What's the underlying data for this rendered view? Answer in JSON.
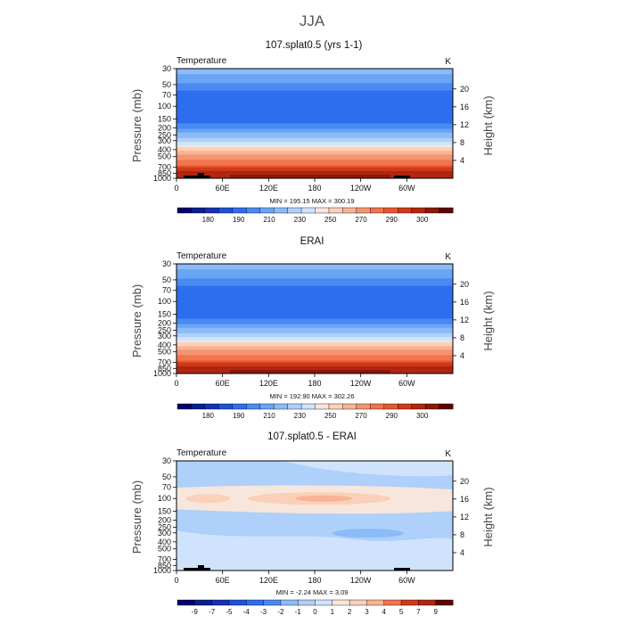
{
  "figure": {
    "season_title": "JJA"
  },
  "chart_data": [
    {
      "type": "heatmap",
      "title": "107.splat0.5 (yrs 1-1)",
      "left_label": "Temperature",
      "right_label": "K",
      "ylabel": "Pressure (mb)",
      "ylabel_right": "Height (km)",
      "pressure_ticks": [
        30,
        50,
        70,
        100,
        150,
        200,
        250,
        300,
        400,
        500,
        700,
        850,
        1000
      ],
      "height_ticks": [
        20,
        16,
        12,
        8,
        4
      ],
      "x_ticks": [
        "0",
        "60E",
        "120E",
        "180",
        "120W",
        "60W"
      ],
      "x_range": [
        0,
        360
      ],
      "stats": {
        "text": "MIN = 195.15   MAX = 300.19",
        "min": 195.15,
        "max": 300.19
      },
      "field": "temperature",
      "colorbar": {
        "labels": [
          "180",
          "190",
          "210",
          "230",
          "250",
          "270",
          "290",
          "300"
        ],
        "colors": [
          "#00006e",
          "#0a1e8c",
          "#1432b4",
          "#1e50dc",
          "#2d6eee",
          "#4a8af2",
          "#6aa4f5",
          "#8bbcf7",
          "#aed0fa",
          "#cfe3fc",
          "#f7e6dc",
          "#fad0b8",
          "#f8b394",
          "#f59470",
          "#f0744c",
          "#e85530",
          "#d03a16",
          "#b02610",
          "#8c160a",
          "#5a0600"
        ]
      }
    },
    {
      "type": "heatmap",
      "title": "ERAI",
      "left_label": "Temperature",
      "right_label": "K",
      "ylabel": "Pressure (mb)",
      "ylabel_right": "Height (km)",
      "pressure_ticks": [
        30,
        50,
        70,
        100,
        150,
        200,
        250,
        300,
        400,
        500,
        700,
        850,
        1000
      ],
      "height_ticks": [
        20,
        16,
        12,
        8,
        4
      ],
      "x_ticks": [
        "0",
        "60E",
        "120E",
        "180",
        "120W",
        "60W"
      ],
      "x_range": [
        0,
        360
      ],
      "stats": {
        "text": "MIN = 192.90   MAX = 302.26",
        "min": 192.9,
        "max": 302.26
      },
      "field": "temperature",
      "colorbar": {
        "labels": [
          "180",
          "190",
          "210",
          "230",
          "250",
          "270",
          "290",
          "300"
        ],
        "colors": [
          "#00006e",
          "#0a1e8c",
          "#1432b4",
          "#1e50dc",
          "#2d6eee",
          "#4a8af2",
          "#6aa4f5",
          "#8bbcf7",
          "#aed0fa",
          "#cfe3fc",
          "#f7e6dc",
          "#fad0b8",
          "#f8b394",
          "#f59470",
          "#f0744c",
          "#e85530",
          "#d03a16",
          "#b02610",
          "#8c160a",
          "#5a0600"
        ]
      }
    },
    {
      "type": "heatmap",
      "title": "107.splat0.5 - ERAI",
      "left_label": "Temperature",
      "right_label": "K",
      "ylabel": "Pressure (mb)",
      "ylabel_right": "Height (km)",
      "pressure_ticks": [
        30,
        50,
        70,
        100,
        150,
        200,
        250,
        300,
        400,
        500,
        700,
        850,
        1000
      ],
      "height_ticks": [
        20,
        16,
        12,
        8,
        4
      ],
      "x_ticks": [
        "0",
        "60E",
        "120E",
        "180",
        "120W",
        "60W"
      ],
      "x_range": [
        0,
        360
      ],
      "stats": {
        "text": "MIN = -2.24   MAX = 3.09",
        "min": -2.24,
        "max": 3.09
      },
      "field": "difference",
      "colorbar": {
        "labels": [
          "-9",
          "-7",
          "-5",
          "-4",
          "-3",
          "-2",
          "-1",
          "0",
          "1",
          "2",
          "3",
          "4",
          "5",
          "7",
          "9"
        ],
        "colors": [
          "#00006e",
          "#0a1e8c",
          "#1432b4",
          "#1e50dc",
          "#2d6eee",
          "#4a8af2",
          "#8bbcf7",
          "#aed0fa",
          "#cfe3fc",
          "#f7e6dc",
          "#fad0b8",
          "#f8b394",
          "#f0744c",
          "#d03a16",
          "#b02610",
          "#5a0600"
        ]
      }
    }
  ]
}
